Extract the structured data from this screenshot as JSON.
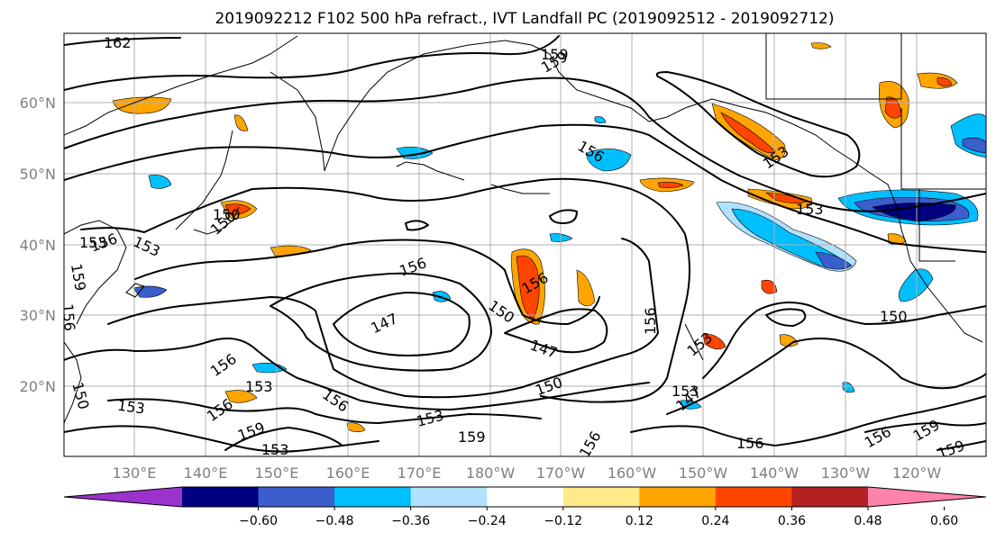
{
  "title": "2019092212 F102 500 hPa refract., IVT Landfall PC (2019092512 - 2019092712)",
  "lon_labels": [
    "130°E",
    "140°E",
    "150°E",
    "160°E",
    "170°E",
    "180°W",
    "170°W",
    "160°W",
    "150°W",
    "140°W",
    "130°W",
    "120°W"
  ],
  "lat_labels": [
    "60°N",
    "50°N",
    "40°N",
    "30°N",
    "20°N"
  ],
  "colorbar": {
    "colors": [
      "#9933cc",
      "#000080",
      "#3a5fcd",
      "#00bfff",
      "#b0e2ff",
      "#ffffff",
      "#ffe98a",
      "#ffa500",
      "#ff4500",
      "#b22222",
      "#ff82ab"
    ],
    "ticks": [
      "−0.60",
      "−0.48",
      "−0.36",
      "−0.24",
      "−0.12",
      "0.12",
      "0.24",
      "0.36",
      "0.48",
      "0.60"
    ]
  },
  "contour_labels": [
    "162",
    "159",
    "156",
    "156",
    "153",
    "150",
    "159",
    "153",
    "156",
    "153",
    "156",
    "150",
    "156",
    "147",
    "156",
    "150",
    "147",
    "156",
    "153",
    "150",
    "147",
    "150",
    "153",
    "156",
    "159",
    "159",
    "156",
    "153",
    "153",
    "159",
    "156",
    "156",
    "159",
    "153",
    "153",
    "156",
    "153",
    "150",
    "159"
  ]
}
